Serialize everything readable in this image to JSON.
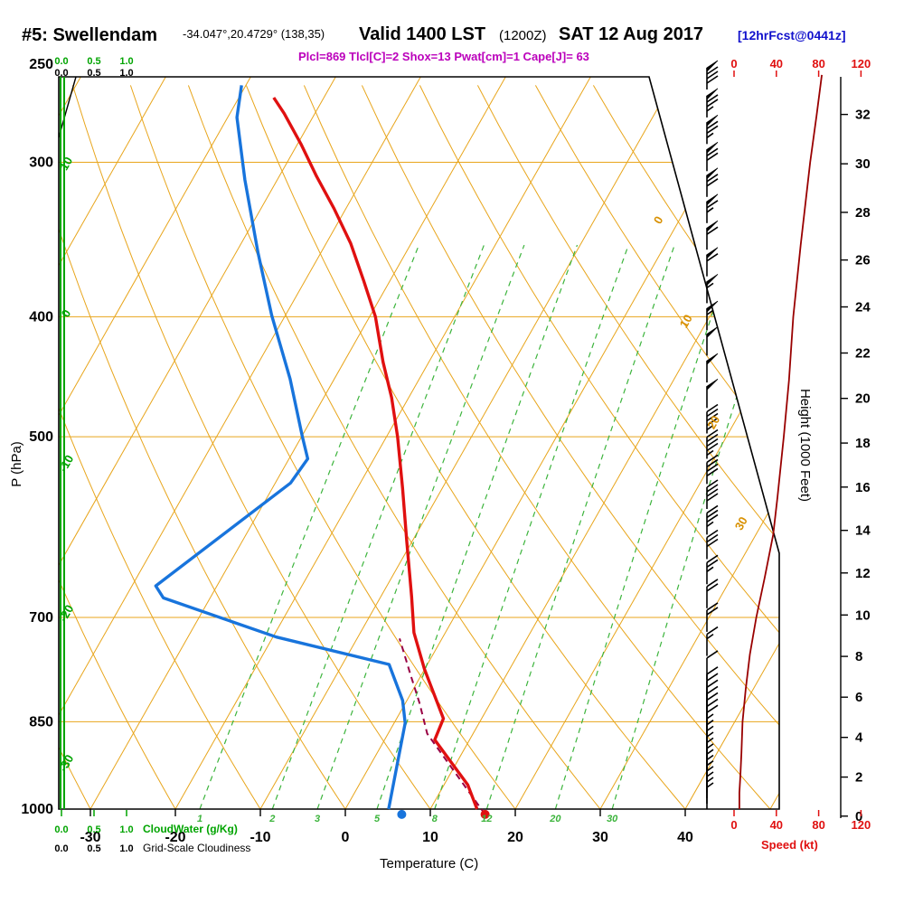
{
  "header": {
    "station_id": "#5: Swellendam",
    "coordinates": "-34.047°,20.4729° (138,35)",
    "valid_label": "Valid 1400 LST",
    "valid_utc": "(1200Z)",
    "valid_date": "SAT 12 Aug 2017",
    "forecast_tag": "[12hrFcst@0441z]",
    "indices_line": "Plcl=869 Tlcl[C]=2 Shox=13 Pwat[cm]=1 Cape[J]= 63"
  },
  "axis_labels": {
    "pressure": "P (hPa)",
    "temperature": "Temperature (C)",
    "height": "Height (1000 Feet)",
    "speed": "Speed (kt)",
    "cloudwater": "CloudWater (g/Kg)",
    "cloudiness": "Grid-Scale Cloudiness"
  },
  "ticks": {
    "pressure_hpa": [
      250,
      300,
      400,
      500,
      700,
      850,
      1000
    ],
    "temperature_c": [
      -30,
      -20,
      -10,
      0,
      10,
      20,
      30,
      40
    ],
    "height_kft": [
      0,
      2,
      4,
      6,
      8,
      10,
      12,
      14,
      16,
      18,
      20,
      22,
      24,
      26,
      28,
      30,
      32
    ],
    "speed_kt": [
      0,
      40,
      80,
      120
    ],
    "cloud_scale": [
      "0.0",
      "0.5",
      "1.0"
    ],
    "isotherm_left_c": [
      10,
      0,
      -10,
      -20,
      -30
    ],
    "isotherm_right_c": [
      0,
      10,
      20,
      30
    ]
  },
  "colors": {
    "grid": "#E8A51B",
    "grid_label": "#D89000",
    "green": "#00A400",
    "mixing": "#3CB43C",
    "temperature": "#E01010",
    "dewpoint": "#1874DC",
    "parcel": "#990044",
    "speed_curve": "#990000",
    "speed_label": "#E01010",
    "indices": "#BB00BB",
    "forecast_tag": "#1111CC"
  },
  "chart_data": {
    "type": "line",
    "variant": "skew-t log-p sounding",
    "pressure_axis_hpa": {
      "min": 250,
      "max": 1000,
      "scale": "log"
    },
    "temperature_axis_c": {
      "min": -30,
      "max": 40
    },
    "isotherm_step_c": 10,
    "dry_adiabat_step_c": 10,
    "mixing_ratio_lines_gkg": [
      1,
      2,
      3,
      5,
      8,
      12,
      20,
      30
    ],
    "temperature_profile_p_c": [
      [
        1000,
        15.5
      ],
      [
        956,
        12.8
      ],
      [
        879,
        5.9
      ],
      [
        845,
        5.5
      ],
      [
        771,
        0.0
      ],
      [
        720,
        -3.7
      ],
      [
        673,
        -6.4
      ],
      [
        608,
        -10.6
      ],
      [
        550,
        -14.7
      ],
      [
        500,
        -18.7
      ],
      [
        465,
        -22.0
      ],
      [
        435,
        -25.4
      ],
      [
        400,
        -29.3
      ],
      [
        374,
        -33.1
      ],
      [
        349,
        -37.1
      ],
      [
        327,
        -41.4
      ],
      [
        308,
        -45.6
      ],
      [
        290,
        -49.6
      ],
      [
        274,
        -53.6
      ],
      [
        266,
        -55.9
      ]
    ],
    "dewpoint_profile_p_c": [
      [
        1000,
        5.1
      ],
      [
        943,
        3.7
      ],
      [
        852,
        1.3
      ],
      [
        817,
        -0.5
      ],
      [
        764,
        -4.5
      ],
      [
        726,
        -19.6
      ],
      [
        675,
        -35.5
      ],
      [
        660,
        -37.2
      ],
      [
        545,
        -28.2
      ],
      [
        521,
        -27.8
      ],
      [
        500,
        -29.9
      ],
      [
        449,
        -35.2
      ],
      [
        399,
        -41.6
      ],
      [
        355,
        -47.4
      ],
      [
        310,
        -53.8
      ],
      [
        276,
        -58.9
      ],
      [
        260,
        -60.5
      ]
    ],
    "parcel_path_p_c": [
      [
        1010,
        16.8
      ],
      [
        869,
        4.6
      ],
      [
        820,
        1.6
      ],
      [
        780,
        -1.2
      ],
      [
        728,
        -5.0
      ]
    ],
    "surface_dots": {
      "pressure_hpa": 1010,
      "temperature_c": 16.8,
      "dewpoint_c": 7.0
    },
    "wind_speed_profile_p_kt": [
      [
        1000,
        5
      ],
      [
        970,
        5
      ],
      [
        940,
        6
      ],
      [
        900,
        7
      ],
      [
        850,
        8
      ],
      [
        800,
        11
      ],
      [
        750,
        15
      ],
      [
        700,
        21
      ],
      [
        650,
        29
      ],
      [
        600,
        37
      ],
      [
        560,
        41
      ],
      [
        500,
        47
      ],
      [
        450,
        52
      ],
      [
        400,
        56
      ],
      [
        350,
        63
      ],
      [
        300,
        72
      ],
      [
        275,
        78
      ],
      [
        255,
        83
      ]
    ],
    "wind_barbs_p_kt": [
      [
        262,
        80
      ],
      [
        276,
        77
      ],
      [
        290,
        74
      ],
      [
        305,
        71
      ],
      [
        320,
        68
      ],
      [
        336,
        65
      ],
      [
        353,
        62
      ],
      [
        371,
        59
      ],
      [
        390,
        56
      ],
      [
        410,
        54
      ],
      [
        430,
        52
      ],
      [
        452,
        50
      ],
      [
        474,
        48
      ],
      [
        497,
        46
      ],
      [
        521,
        43
      ],
      [
        546,
        41
      ],
      [
        572,
        38
      ],
      [
        600,
        36
      ],
      [
        628,
        32
      ],
      [
        658,
        27
      ],
      [
        688,
        22
      ],
      [
        719,
        18
      ],
      [
        752,
        14
      ],
      [
        786,
        11
      ],
      [
        810,
        10
      ],
      [
        820,
        10
      ],
      [
        830,
        9
      ],
      [
        840,
        9
      ],
      [
        850,
        8
      ],
      [
        860,
        8
      ],
      [
        870,
        8
      ],
      [
        880,
        7
      ],
      [
        890,
        7
      ],
      [
        900,
        7
      ],
      [
        910,
        7
      ],
      [
        920,
        6
      ],
      [
        930,
        6
      ],
      [
        940,
        6
      ],
      [
        950,
        6
      ],
      [
        960,
        5
      ],
      [
        970,
        5
      ],
      [
        980,
        5
      ],
      [
        990,
        5
      ],
      [
        1000,
        5
      ]
    ]
  }
}
